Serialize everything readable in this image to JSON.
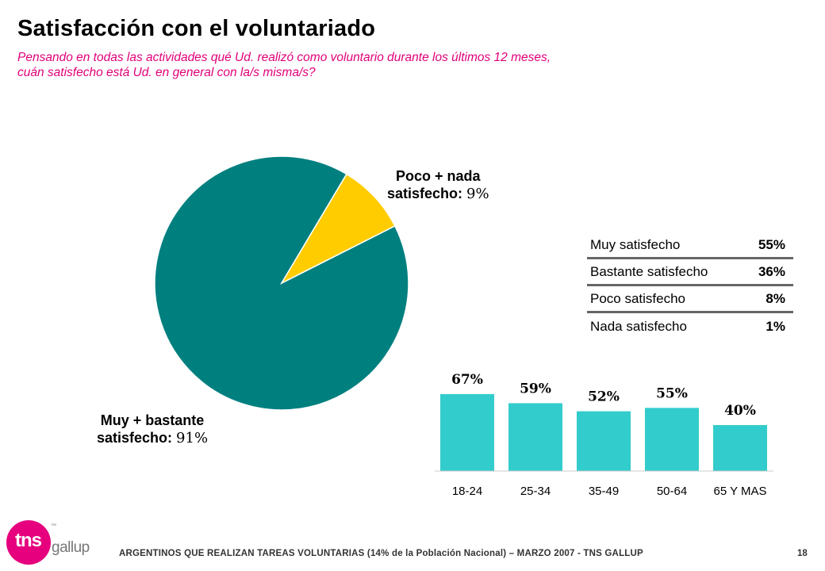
{
  "header": {
    "title": "Satisfacción con el voluntariado",
    "subtitle_line1": "Pensando en todas las actividades qué Ud. realizó como voluntario durante los últimos 12 meses,",
    "subtitle_line2": "cuán satisfecho está Ud. en general con la/s misma/s?"
  },
  "pie_labels": {
    "small_line1": "Poco + nada",
    "small_line2": "satisfecho:",
    "small_pct": "9%",
    "big_line1": "Muy + bastante",
    "big_line2": "satisfecho:",
    "big_pct": "91%"
  },
  "distribution": [
    {
      "label": "Muy satisfecho",
      "value": "55%"
    },
    {
      "label": "Bastante satisfecho",
      "value": "36%"
    },
    {
      "label": "Poco satisfecho",
      "value": "8%"
    },
    {
      "label": "Nada satisfecho",
      "value": "1%"
    }
  ],
  "footer": {
    "text": "ARGENTINOS QUE REALIZAN TAREAS VOLUNTARIAS (14% de la Población Nacional) – MARZO 2007 - TNS GALLUP",
    "page": "18"
  },
  "logo": {
    "tns": "tns",
    "gallup": "gallup",
    "tm": "™"
  },
  "colors": {
    "pie_big": "#007f7f",
    "pie_small": "#ffcc00",
    "bars": "#33cccc",
    "subtitle": "#e0007a",
    "brand": "#e6007e"
  },
  "chart_data": [
    {
      "type": "pie",
      "slices": [
        {
          "label": "Muy + bastante satisfecho",
          "value": 91,
          "color": "#007f7f"
        },
        {
          "label": "Poco + nada satisfecho",
          "value": 9,
          "color": "#ffcc00"
        }
      ]
    },
    {
      "type": "bar",
      "categories": [
        "18-24",
        "25-34",
        "35-49",
        "50-64",
        "65 Y MAS"
      ],
      "values": [
        67,
        59,
        52,
        55,
        40
      ],
      "value_labels": [
        "67%",
        "59%",
        "52%",
        "55%",
        "40%"
      ],
      "ylim": [
        0,
        100
      ],
      "grid": false
    }
  ]
}
